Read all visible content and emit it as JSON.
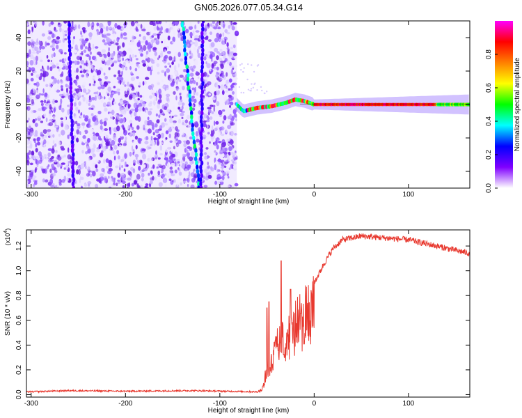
{
  "title": "GN05.2026.077.05.34.G14",
  "chart_data": [
    {
      "type": "heatmap",
      "xlabel": "Height of straight line (km)",
      "ylabel": "Frequency (Hz)",
      "xlim": [
        -305,
        165
      ],
      "ylim": [
        -50,
        50
      ],
      "x_ticks": [
        -300,
        -200,
        -100,
        0,
        100
      ],
      "y_ticks": [
        -40,
        -20,
        0,
        20,
        40
      ],
      "colorbar": {
        "label": "Normalized spectral amplitude",
        "range": [
          0,
          1
        ],
        "ticks": [
          0.0,
          0.2,
          0.4,
          0.6,
          0.8
        ],
        "colormap": [
          "#ffffff",
          "#8000ff",
          "#0000ff",
          "#00ffff",
          "#00ff00",
          "#ffff00",
          "#ff8000",
          "#ff0000",
          "#ff00ff"
        ]
      },
      "features": {
        "noise_region_x": [
          -305,
          -82
        ],
        "signal_start_x": -82,
        "signal_track": [
          {
            "x": -82,
            "freq": 0
          },
          {
            "x": -75,
            "freq": -4
          },
          {
            "x": -60,
            "freq": -2
          },
          {
            "x": -45,
            "freq": -1
          },
          {
            "x": -30,
            "freq": 1
          },
          {
            "x": -20,
            "freq": 3
          },
          {
            "x": -10,
            "freq": 2
          },
          {
            "x": 0,
            "freq": 0
          },
          {
            "x": 50,
            "freq": 0
          },
          {
            "x": 100,
            "freq": 0
          },
          {
            "x": 165,
            "freq": 0
          }
        ],
        "streaks": [
          {
            "x_top": -260,
            "x_bottom": -255
          },
          {
            "x_top": -140,
            "x_bottom": -122
          },
          {
            "x_top": -118,
            "x_bottom": -120
          }
        ]
      }
    },
    {
      "type": "line",
      "xlabel": "Height of straight line (km)",
      "ylabel": "SNR (10 * v/v)",
      "y_multiplier": "(x10",
      "y_exponent": "4",
      "xlim": [
        -305,
        165
      ],
      "ylim": [
        -0.02,
        1.33
      ],
      "x_ticks": [
        -300,
        -200,
        -100,
        0,
        100
      ],
      "y_ticks": [
        0.0,
        0.2,
        0.4,
        0.6,
        0.8,
        1.0,
        1.2
      ],
      "series_color": "#e8392f",
      "envelope": [
        {
          "x": -305,
          "y": 0.02
        },
        {
          "x": -260,
          "y": 0.03
        },
        {
          "x": -200,
          "y": 0.025
        },
        {
          "x": -130,
          "y": 0.03
        },
        {
          "x": -60,
          "y": 0.02
        },
        {
          "x": -55,
          "y": 0.05
        },
        {
          "x": -50,
          "y": 0.25
        },
        {
          "x": -45,
          "y": 0.35
        },
        {
          "x": -40,
          "y": 0.45
        },
        {
          "x": -30,
          "y": 0.55
        },
        {
          "x": -20,
          "y": 0.65
        },
        {
          "x": -10,
          "y": 0.75
        },
        {
          "x": 0,
          "y": 0.9
        },
        {
          "x": 10,
          "y": 1.05
        },
        {
          "x": 20,
          "y": 1.18
        },
        {
          "x": 30,
          "y": 1.25
        },
        {
          "x": 50,
          "y": 1.28
        },
        {
          "x": 100,
          "y": 1.25
        },
        {
          "x": 165,
          "y": 1.14
        }
      ],
      "spikes": [
        {
          "x": -50,
          "y": 0.7
        },
        {
          "x": -48,
          "y": 0.75
        },
        {
          "x": -35,
          "y": 1.08
        },
        {
          "x": -25,
          "y": 0.85
        }
      ]
    }
  ]
}
